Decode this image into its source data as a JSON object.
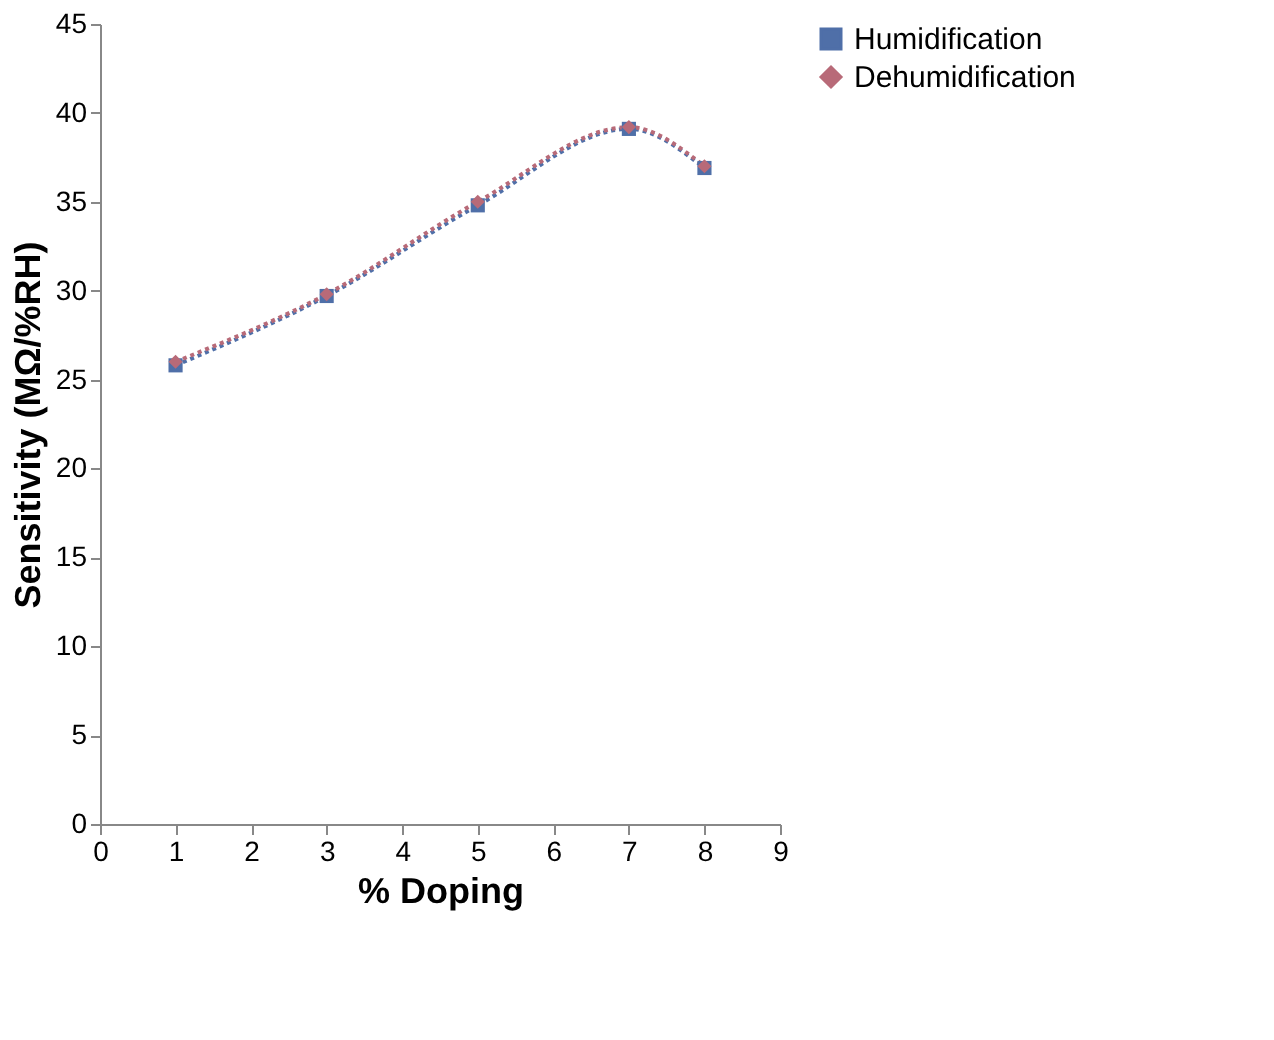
{
  "chart_data": {
    "type": "line",
    "xlabel": "% Doping",
    "ylabel": "Sensitivity (MΩ/%RH)",
    "xlim": [
      0,
      9
    ],
    "xticks": [
      0,
      1,
      2,
      3,
      4,
      5,
      6,
      7,
      8,
      9
    ],
    "ylim": [
      0,
      45
    ],
    "yticks": [
      0,
      5,
      10,
      15,
      20,
      25,
      30,
      35,
      40,
      45
    ],
    "grid": false,
    "legend": "top right",
    "line_style": "dotted",
    "series": [
      {
        "name": "Humidification",
        "color": "#4f6fa8",
        "marker": "square",
        "x": [
          1,
          3,
          5,
          7,
          8
        ],
        "values": [
          25.8,
          29.7,
          34.8,
          39.1,
          36.9
        ]
      },
      {
        "name": "Dehumidification",
        "color": "#b86a78",
        "marker": "diamond",
        "x": [
          1,
          3,
          5,
          7,
          8
        ],
        "values": [
          26,
          29.8,
          35,
          39.2,
          37
        ]
      }
    ]
  }
}
